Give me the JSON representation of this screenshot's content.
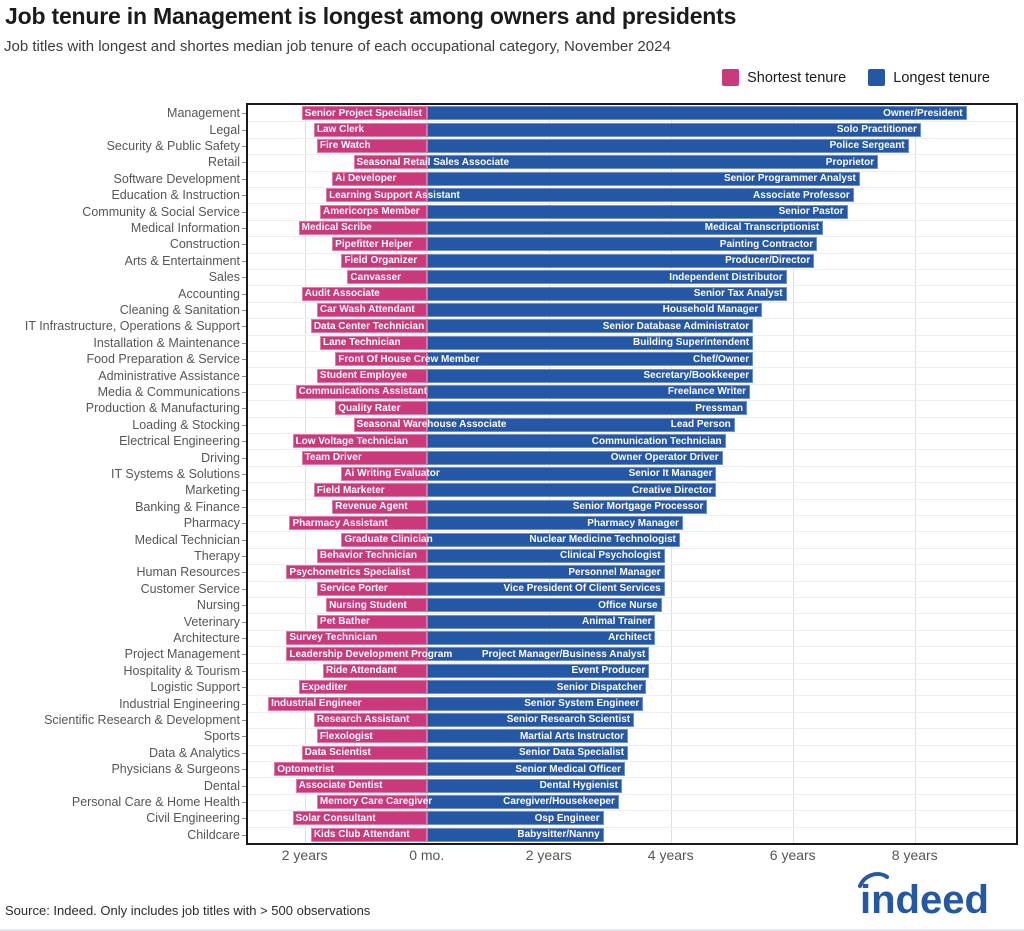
{
  "header": {
    "title": "Job tenure in Management is longest among owners and presidents",
    "subtitle": "Job titles with longest and shortes median job tenure of each occupational category, November 2024"
  },
  "legend": {
    "items": [
      {
        "label": "Shortest tenure",
        "color": "#c9397b"
      },
      {
        "label": "Longest tenure",
        "color": "#2557a7"
      }
    ]
  },
  "footer": {
    "source": "Source: Indeed. Only includes job titles with > 500 observations",
    "logo_text": "indeed",
    "logo_color": "#2557a7"
  },
  "chart_data": {
    "type": "bar",
    "subtype": "diverging-horizontal",
    "unit": "years",
    "xlim": [
      -2.93,
      9.66
    ],
    "grid": true,
    "legend_position": "top-right",
    "colors": {
      "shortest": "#c9397b",
      "longest": "#2557a7"
    },
    "x_ticks": [
      {
        "value": -2,
        "label": "2 years"
      },
      {
        "value": 0,
        "label": "0 mo."
      },
      {
        "value": 2,
        "label": "2 years"
      },
      {
        "value": 4,
        "label": "4 years"
      },
      {
        "value": 6,
        "label": "6 years"
      },
      {
        "value": 8,
        "label": "8 years"
      }
    ],
    "rows": [
      {
        "category": "Management",
        "shortest": {
          "label": "Senior Project Specialist",
          "years": 2.05
        },
        "longest": {
          "label": "Owner/President",
          "years": 8.85
        }
      },
      {
        "category": "Legal",
        "shortest": {
          "label": "Law Clerk",
          "years": 1.85
        },
        "longest": {
          "label": "Solo Practitioner",
          "years": 8.1
        }
      },
      {
        "category": "Security & Public Safety",
        "shortest": {
          "label": "Fire Watch",
          "years": 1.8
        },
        "longest": {
          "label": "Police Sergeant",
          "years": 7.9
        }
      },
      {
        "category": "Retail",
        "shortest": {
          "label": "Seasonal Retail Sales Associate",
          "years": 1.2
        },
        "longest": {
          "label": "Proprietor",
          "years": 7.4
        }
      },
      {
        "category": "Software Development",
        "shortest": {
          "label": "Ai Developer",
          "years": 1.55
        },
        "longest": {
          "label": "Senior Programmer Analyst",
          "years": 7.1
        }
      },
      {
        "category": "Education & Instruction",
        "shortest": {
          "label": "Learning Support Assistant",
          "years": 1.65
        },
        "longest": {
          "label": "Associate Professor",
          "years": 7.0
        }
      },
      {
        "category": "Community & Social Service",
        "shortest": {
          "label": "Americorps Member",
          "years": 1.75
        },
        "longest": {
          "label": "Senior Pastor",
          "years": 6.9
        }
      },
      {
        "category": "Medical Information",
        "shortest": {
          "label": "Medical Scribe",
          "years": 2.1
        },
        "longest": {
          "label": "Medical Transcriptionist",
          "years": 6.5
        }
      },
      {
        "category": "Construction",
        "shortest": {
          "label": "Pipefitter Helper",
          "years": 1.55
        },
        "longest": {
          "label": "Painting Contractor",
          "years": 6.4
        }
      },
      {
        "category": "Arts & Entertainment",
        "shortest": {
          "label": "Field Organizer",
          "years": 1.4
        },
        "longest": {
          "label": "Producer/Director",
          "years": 6.35
        }
      },
      {
        "category": "Sales",
        "shortest": {
          "label": "Canvasser",
          "years": 1.3
        },
        "longest": {
          "label": "Independent Distributor",
          "years": 5.9
        }
      },
      {
        "category": "Accounting",
        "shortest": {
          "label": "Audit Associate",
          "years": 2.05
        },
        "longest": {
          "label": "Senior Tax Analyst",
          "years": 5.9
        }
      },
      {
        "category": "Cleaning & Sanitation",
        "shortest": {
          "label": "Car Wash Attendant",
          "years": 1.8
        },
        "longest": {
          "label": "Household Manager",
          "years": 5.5
        }
      },
      {
        "category": "IT Infrastructure, Operations & Support",
        "shortest": {
          "label": "Data Center Technician",
          "years": 1.9
        },
        "longest": {
          "label": "Senior Database Administrator",
          "years": 5.35
        }
      },
      {
        "category": "Installation & Maintenance",
        "shortest": {
          "label": "Lane Technician",
          "years": 1.75
        },
        "longest": {
          "label": "Building Superintendent",
          "years": 5.35
        }
      },
      {
        "category": "Food Preparation & Service",
        "shortest": {
          "label": "Front Of House Crew Member",
          "years": 1.5
        },
        "longest": {
          "label": "Chef/Owner",
          "years": 5.35
        }
      },
      {
        "category": "Administrative Assistance",
        "shortest": {
          "label": "Student Employee",
          "years": 1.8
        },
        "longest": {
          "label": "Secretary/Bookkeeper",
          "years": 5.35
        }
      },
      {
        "category": "Media & Communications",
        "shortest": {
          "label": "Communications Assistant",
          "years": 2.15
        },
        "longest": {
          "label": "Freelance Writer",
          "years": 5.3
        }
      },
      {
        "category": "Production & Manufacturing",
        "shortest": {
          "label": "Quality Rater",
          "years": 1.5
        },
        "longest": {
          "label": "Pressman",
          "years": 5.25
        }
      },
      {
        "category": "Loading & Stocking",
        "shortest": {
          "label": "Seasonal Warehouse Associate",
          "years": 1.2
        },
        "longest": {
          "label": "Lead Person",
          "years": 5.05
        }
      },
      {
        "category": "Electrical Engineering",
        "shortest": {
          "label": "Low Voltage Technician",
          "years": 2.2
        },
        "longest": {
          "label": "Communication Technician",
          "years": 4.9
        }
      },
      {
        "category": "Driving",
        "shortest": {
          "label": "Team Driver",
          "years": 2.05
        },
        "longest": {
          "label": "Owner Operator Driver",
          "years": 4.85
        }
      },
      {
        "category": "IT Systems & Solutions",
        "shortest": {
          "label": "Ai Writing Evaluator",
          "years": 1.4
        },
        "longest": {
          "label": "Senior It Manager",
          "years": 4.75
        }
      },
      {
        "category": "Marketing",
        "shortest": {
          "label": "Field Marketer",
          "years": 1.85
        },
        "longest": {
          "label": "Creative Director",
          "years": 4.75
        }
      },
      {
        "category": "Banking & Finance",
        "shortest": {
          "label": "Revenue Agent",
          "years": 1.55
        },
        "longest": {
          "label": "Senior Mortgage Processor",
          "years": 4.6
        }
      },
      {
        "category": "Pharmacy",
        "shortest": {
          "label": "Pharmacy Assistant",
          "years": 2.25
        },
        "longest": {
          "label": "Pharmacy Manager",
          "years": 4.2
        }
      },
      {
        "category": "Medical Technician",
        "shortest": {
          "label": "Graduate Clinician",
          "years": 1.4
        },
        "longest": {
          "label": "Nuclear Medicine Technologist",
          "years": 4.15
        }
      },
      {
        "category": "Therapy",
        "shortest": {
          "label": "Behavior Technician",
          "years": 1.8
        },
        "longest": {
          "label": "Clinical Psychologist",
          "years": 3.9
        }
      },
      {
        "category": "Human Resources",
        "shortest": {
          "label": "Psychometrics Specialist",
          "years": 2.3
        },
        "longest": {
          "label": "Personnel Manager",
          "years": 3.9
        }
      },
      {
        "category": "Customer Service",
        "shortest": {
          "label": "Service Porter",
          "years": 1.8
        },
        "longest": {
          "label": "Vice President Of Client Services",
          "years": 3.9
        }
      },
      {
        "category": "Nursing",
        "shortest": {
          "label": "Nursing Student",
          "years": 1.65
        },
        "longest": {
          "label": "Office Nurse",
          "years": 3.85
        }
      },
      {
        "category": "Veterinary",
        "shortest": {
          "label": "Pet Bather",
          "years": 1.8
        },
        "longest": {
          "label": "Animal Trainer",
          "years": 3.75
        }
      },
      {
        "category": "Architecture",
        "shortest": {
          "label": "Survey Technician",
          "years": 2.3
        },
        "longest": {
          "label": "Architect",
          "years": 3.75
        }
      },
      {
        "category": "Project Management",
        "shortest": {
          "label": "Leadership Development Program",
          "years": 2.3
        },
        "longest": {
          "label": "Project Manager/Business Analyst",
          "years": 3.65
        }
      },
      {
        "category": "Hospitality & Tourism",
        "shortest": {
          "label": "Ride Attendant",
          "years": 1.7
        },
        "longest": {
          "label": "Event Producer",
          "years": 3.65
        }
      },
      {
        "category": "Logistic Support",
        "shortest": {
          "label": "Expediter",
          "years": 2.1
        },
        "longest": {
          "label": "Senior Dispatcher",
          "years": 3.6
        }
      },
      {
        "category": "Industrial Engineering",
        "shortest": {
          "label": "Industrial Engineer",
          "years": 2.6
        },
        "longest": {
          "label": "Senior System Engineer",
          "years": 3.55
        }
      },
      {
        "category": "Scientific Research & Development",
        "shortest": {
          "label": "Research Assistant",
          "years": 1.85
        },
        "longest": {
          "label": "Senior Research Scientist",
          "years": 3.4
        }
      },
      {
        "category": "Sports",
        "shortest": {
          "label": "Flexologist",
          "years": 1.8
        },
        "longest": {
          "label": "Martial Arts Instructor",
          "years": 3.3
        }
      },
      {
        "category": "Data & Analytics",
        "shortest": {
          "label": "Data Scientist",
          "years": 2.05
        },
        "longest": {
          "label": "Senior Data Specialist",
          "years": 3.3
        }
      },
      {
        "category": "Physicians & Surgeons",
        "shortest": {
          "label": "Optometrist",
          "years": 2.5
        },
        "longest": {
          "label": "Senior Medical Officer",
          "years": 3.25
        }
      },
      {
        "category": "Dental",
        "shortest": {
          "label": "Associate Dentist",
          "years": 2.15
        },
        "longest": {
          "label": "Dental Hygienist",
          "years": 3.2
        }
      },
      {
        "category": "Personal Care & Home Health",
        "shortest": {
          "label": "Memory Care Caregiver",
          "years": 1.8
        },
        "longest": {
          "label": "Caregiver/Housekeeper",
          "years": 3.15
        }
      },
      {
        "category": "Civil Engineering",
        "shortest": {
          "label": "Solar Consultant",
          "years": 2.2
        },
        "longest": {
          "label": "Osp Engineer",
          "years": 2.9
        }
      },
      {
        "category": "Childcare",
        "shortest": {
          "label": "Kids Club Attendant",
          "years": 1.9
        },
        "longest": {
          "label": "Babysitter/Nanny",
          "years": 2.9
        }
      }
    ]
  }
}
